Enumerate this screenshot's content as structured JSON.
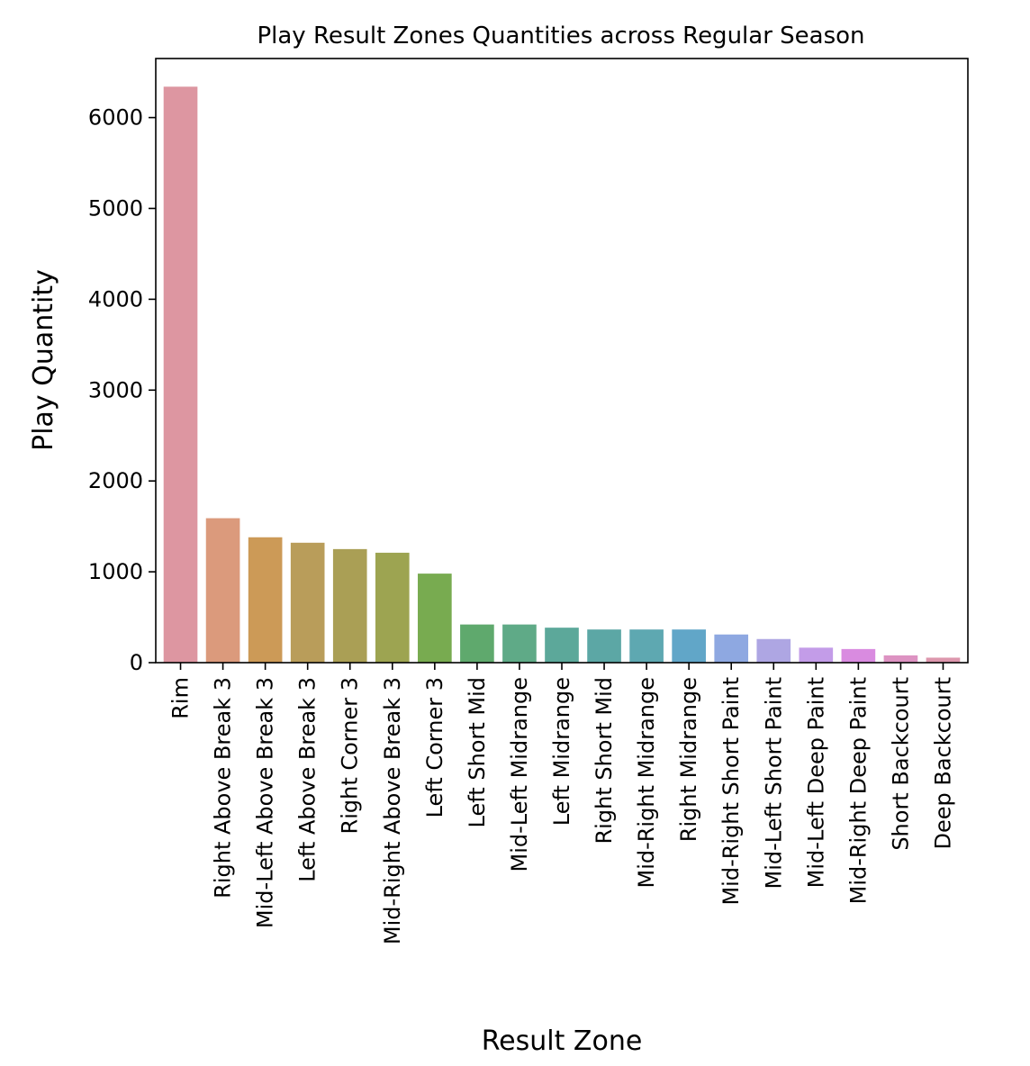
{
  "chart_data": {
    "type": "bar",
    "title": "Play Result Zones Quantities across Regular Season",
    "xlabel": "Result Zone",
    "ylabel": "Play Quantity",
    "ylim": [
      0,
      6650
    ],
    "yticks": [
      0,
      1000,
      2000,
      3000,
      4000,
      5000,
      6000
    ],
    "grid": false,
    "categories": [
      "Rim",
      "Right Above Break 3",
      "Mid-Left Above Break 3",
      "Left Above Break 3",
      "Right Corner 3",
      "Mid-Right Above Break 3",
      "Left Corner 3",
      "Left Short Mid",
      "Mid-Left Midrange",
      "Left Midrange",
      "Right Short Mid",
      "Mid-Right Midrange",
      "Right Midrange",
      "Mid-Right Short Paint",
      "Mid-Left Short Paint",
      "Mid-Left Deep Paint",
      "Mid-Right Deep Paint",
      "Short Backcourt",
      "Deep Backcourt"
    ],
    "values": [
      6340,
      1590,
      1380,
      1320,
      1250,
      1210,
      980,
      420,
      420,
      385,
      365,
      365,
      365,
      310,
      260,
      165,
      150,
      80,
      55
    ],
    "colors": [
      "#dd96a1",
      "#db9a7c",
      "#cc9a57",
      "#b99d5a",
      "#aa9f55",
      "#9da451",
      "#78ab50",
      "#5fa96d",
      "#5faa87",
      "#5ca89a",
      "#5ca7a5",
      "#5ea8b1",
      "#61a6c8",
      "#8ea8e1",
      "#aea6e3",
      "#c39ce8",
      "#d98be0",
      "#dd93c2",
      "#dd97ad"
    ]
  }
}
